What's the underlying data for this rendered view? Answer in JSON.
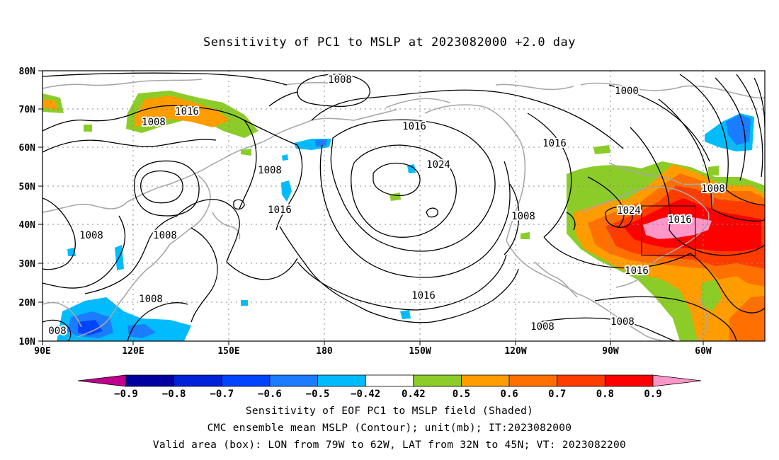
{
  "title": "Sensitivity of PC1 to MSLP at 2023082000 +2.0 day",
  "lat_labels": [
    "80N",
    "70N",
    "60N",
    "50N",
    "40N",
    "30N",
    "20N",
    "10N"
  ],
  "lon_labels": [
    "90E",
    "120E",
    "150E",
    "180",
    "150W",
    "120W",
    "90W",
    "60W"
  ],
  "contour_labels": [
    {
      "id": "c1008a",
      "text": "1008"
    },
    {
      "id": "c1016a",
      "text": "1016"
    },
    {
      "id": "c1008b",
      "text": "1008"
    },
    {
      "id": "c1016b",
      "text": "1016"
    },
    {
      "id": "c1024a",
      "text": "1024"
    },
    {
      "id": "c1016c",
      "text": "1016"
    },
    {
      "id": "c1000a",
      "text": "1000"
    },
    {
      "id": "c1008c",
      "text": "1008"
    },
    {
      "id": "c1016d",
      "text": "1016"
    },
    {
      "id": "c1008d",
      "text": "1008"
    },
    {
      "id": "c1008e",
      "text": "1008"
    },
    {
      "id": "c1008f",
      "text": "1008"
    },
    {
      "id": "c1008g",
      "text": "1008"
    },
    {
      "id": "c1016e",
      "text": "1016"
    },
    {
      "id": "c1024b",
      "text": "1024"
    },
    {
      "id": "c1016f",
      "text": "1016"
    },
    {
      "id": "c1008h",
      "text": "1008"
    },
    {
      "id": "c1016g",
      "text": "1016"
    },
    {
      "id": "c1008i",
      "text": "1008"
    },
    {
      "id": "c1008j",
      "text": "1008"
    },
    {
      "id": "c1008k",
      "text": "008"
    }
  ],
  "colorbar": {
    "labels": [
      "-0.9",
      "-0.8",
      "-0.7",
      "-0.6",
      "-0.5",
      "-0.42",
      "0.42",
      "0.5",
      "0.6",
      "0.7",
      "0.8",
      "0.9"
    ],
    "colors": [
      "#c0008c",
      "#0000a0",
      "#0022d8",
      "#0044ff",
      "#1c7cff",
      "#00bcff",
      "#ffffff",
      "#8ccc28",
      "#ff9c00",
      "#ff7000",
      "#ff3c00",
      "#ff0000",
      "#ff96c8"
    ]
  },
  "footer": {
    "line1": "Sensitivity of EOF PC1 to MSLP field (Shaded)",
    "line2": "CMC ensemble mean MSLP (Contour); unit(mb); IT:2023082000",
    "line3": "Valid area (box): LON from 79W to 62W, LAT from 32N to 45N; VT: 2023082200"
  }
}
